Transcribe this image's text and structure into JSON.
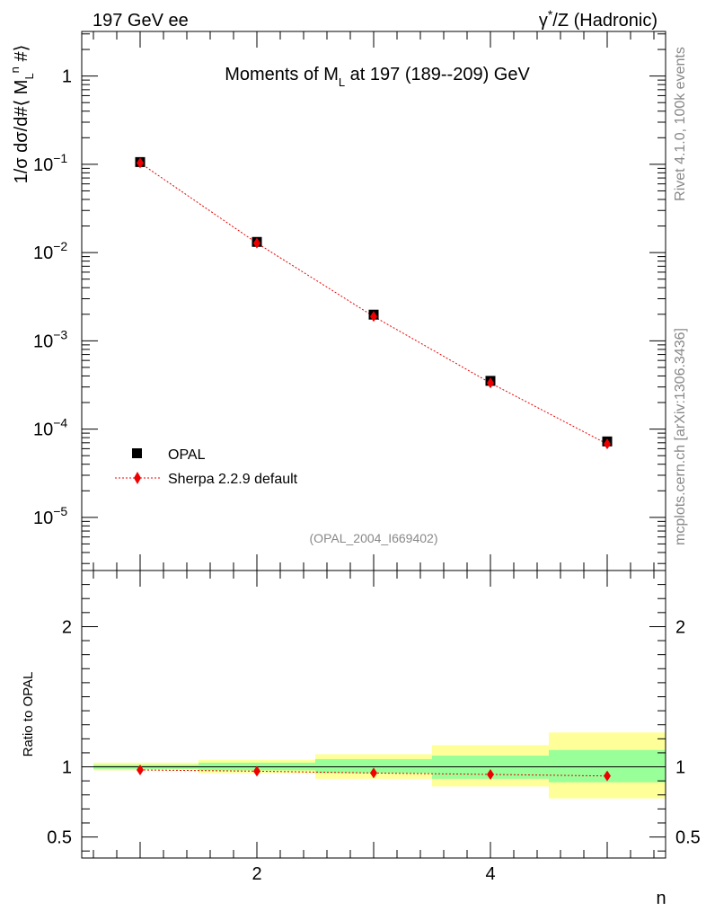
{
  "header": {
    "left": "197 GeV ee",
    "right_prefix": "γ",
    "right_suffix": "/Z (Hadronic)",
    "right_star": "*"
  },
  "side_labels": {
    "rivet": "Rivet 4.1.0,  100k events",
    "mcplots": "mcplots.cern.ch [arXiv:1306.3436]"
  },
  "chart_data": [
    {
      "type": "scatter",
      "title": "Moments of M_L at 197 (189--209) GeV",
      "title_parts": {
        "a": "Moments of M",
        "sub": "L",
        "b": " at 197 (189--209) GeV"
      },
      "ylabel": "1/σ  dσ/d#⟨ M_L^n #⟩",
      "ylabel_parts": {
        "a": "1/σ  dσ/d#⟨ M",
        "sub": "L",
        "sup": "n",
        "b": " #⟩"
      },
      "yscale": "log",
      "ylim": [
        2.5e-06,
        3.2
      ],
      "xlim": [
        0.5,
        5.5
      ],
      "yticks": [
        {
          "value": 1,
          "label": "1"
        },
        {
          "value": 0.1,
          "base": "10",
          "exp": "−1"
        },
        {
          "value": 0.01,
          "base": "10",
          "exp": "−2"
        },
        {
          "value": 0.001,
          "base": "10",
          "exp": "−3"
        },
        {
          "value": 0.0001,
          "base": "10",
          "exp": "−4"
        },
        {
          "value": 1e-05,
          "base": "10",
          "exp": "−5"
        }
      ],
      "watermark": "(OPAL_2004_I669402)",
      "legend_position": "bottom-left",
      "series": [
        {
          "name": "OPAL",
          "marker": "square",
          "color": "#000000",
          "x": [
            1,
            2,
            3,
            4,
            5
          ],
          "values": [
            0.106,
            0.0132,
            0.00198,
            0.000352,
            7.25e-05
          ]
        },
        {
          "name": "Sherpa 2.2.9 default",
          "marker": "diamond",
          "color": "#ee0000",
          "line": "dotted",
          "x": [
            1,
            2,
            3,
            4,
            5
          ],
          "values": [
            0.1035,
            0.0128,
            0.00189,
            0.000333,
            6.78e-05
          ]
        }
      ]
    },
    {
      "type": "scatter",
      "ylabel": "Ratio to OPAL",
      "xlabel": "n",
      "ylim": [
        0.35,
        2.4
      ],
      "xlim": [
        0.5,
        5.5
      ],
      "xticks": [
        2,
        4
      ],
      "yticks": [
        {
          "value": 0.5,
          "label": "0.5"
        },
        {
          "value": 1,
          "label": "1"
        },
        {
          "value": 2,
          "label": "2"
        }
      ],
      "uncertainty_bands": [
        {
          "x_low": 0.6,
          "x_high": 1.5,
          "inner": [
            0.985,
            1.015
          ],
          "outer": [
            0.975,
            1.03
          ]
        },
        {
          "x_low": 1.5,
          "x_high": 2.5,
          "inner": [
            0.975,
            1.03
          ],
          "outer": [
            0.955,
            1.05
          ]
        },
        {
          "x_low": 2.5,
          "x_high": 3.5,
          "inner": [
            0.955,
            1.055
          ],
          "outer": [
            0.915,
            1.09
          ]
        },
        {
          "x_low": 3.5,
          "x_high": 4.5,
          "inner": [
            0.915,
            1.08
          ],
          "outer": [
            0.86,
            1.155
          ]
        },
        {
          "x_low": 4.5,
          "x_high": 5.5,
          "inner": [
            0.89,
            1.12
          ],
          "outer": [
            0.775,
            1.245
          ]
        }
      ],
      "series": [
        {
          "name": "Sherpa 2.2.9 default",
          "marker": "diamond",
          "color": "#ee0000",
          "line": "dotted",
          "x": [
            1,
            2,
            3,
            4,
            5
          ],
          "values": [
            0.978,
            0.969,
            0.956,
            0.946,
            0.935
          ]
        }
      ],
      "reference_line": 1
    }
  ]
}
